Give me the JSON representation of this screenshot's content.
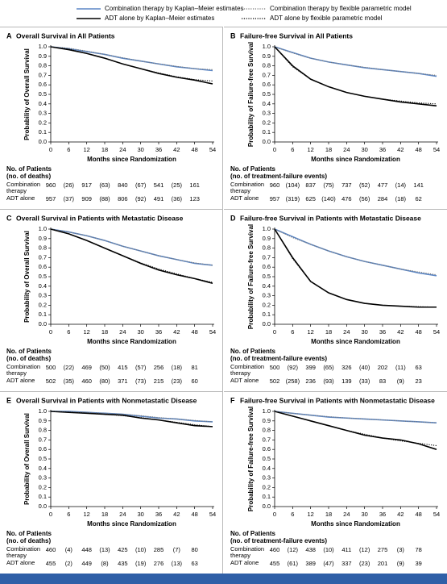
{
  "legend": [
    {
      "name": "Combination therapy by Kaplan–Meier estimates",
      "color": "#5b86c5",
      "style": "solid"
    },
    {
      "name": "ADT alone by Kaplan–Meier estimates",
      "color": "#000000",
      "style": "solid"
    },
    {
      "name": "Combination therapy by flexible parametric model",
      "color": "#777777",
      "style": "dotted"
    },
    {
      "name": "ADT alone by flexible parametric model",
      "color": "#000000",
      "style": "dotted"
    }
  ],
  "chart_data": [
    {
      "type": "line",
      "label": "A",
      "title": "Overall Survival in All Patients",
      "ylabel": "Probability of Overall Survival",
      "xlabel": "Months since Randomization",
      "xlim": [
        0,
        54
      ],
      "xticks": [
        0,
        6,
        12,
        18,
        24,
        30,
        36,
        42,
        48,
        54
      ],
      "ylim": [
        0,
        1
      ],
      "yticks": [
        {
          "value": 0,
          "label": "0.0"
        },
        0.1,
        0.2,
        0.3,
        0.4,
        0.5,
        0.6,
        0.7,
        0.8,
        0.9,
        {
          "value": 1,
          "label": "1.0"
        }
      ],
      "x": [
        0,
        6,
        12,
        18,
        24,
        30,
        36,
        42,
        48,
        54
      ],
      "series": [
        {
          "values": [
            1,
            0.98,
            0.95,
            0.92,
            0.88,
            0.85,
            0.82,
            0.79,
            0.77,
            0.75
          ]
        },
        {
          "values": [
            1,
            0.97,
            0.93,
            0.88,
            0.82,
            0.77,
            0.72,
            0.68,
            0.65,
            0.61
          ]
        },
        {
          "values": [
            1,
            0.985,
            0.955,
            0.92,
            0.885,
            0.85,
            0.82,
            0.795,
            0.77,
            0.76
          ]
        },
        {
          "values": [
            1,
            0.975,
            0.93,
            0.88,
            0.82,
            0.77,
            0.725,
            0.685,
            0.655,
            0.64
          ]
        }
      ],
      "risk_table": {
        "header": "No. of Patients",
        "subheader": "(no. of deaths)",
        "rows": [
          {
            "label": "Combination therapy",
            "cells": [
              "960",
              "(26)",
              "917",
              "(63)",
              "840",
              "(67)",
              "541",
              "(25)",
              "161"
            ]
          },
          {
            "label": "ADT alone",
            "cells": [
              "957",
              "(37)",
              "909",
              "(88)",
              "806",
              "(92)",
              "491",
              "(36)",
              "123"
            ]
          }
        ]
      }
    },
    {
      "type": "line",
      "label": "B",
      "title": "Failure-free Survival in All Patients",
      "ylabel": "Probability of Failure-free Survival",
      "xlabel": "Months since Randomization",
      "xlim": [
        0,
        54
      ],
      "xticks": [
        0,
        6,
        12,
        18,
        24,
        30,
        36,
        42,
        48,
        54
      ],
      "ylim": [
        0,
        1
      ],
      "yticks": [
        {
          "value": 0,
          "label": "0.0"
        },
        0.1,
        0.2,
        0.3,
        0.4,
        0.5,
        0.6,
        0.7,
        0.8,
        0.9,
        {
          "value": 1,
          "label": "1.0"
        }
      ],
      "x": [
        0,
        6,
        12,
        18,
        24,
        30,
        36,
        42,
        48,
        54
      ],
      "series": [
        {
          "values": [
            1,
            0.94,
            0.88,
            0.84,
            0.81,
            0.78,
            0.76,
            0.74,
            0.72,
            0.69
          ]
        },
        {
          "values": [
            1,
            0.8,
            0.66,
            0.58,
            0.52,
            0.48,
            0.45,
            0.42,
            0.4,
            0.38
          ]
        },
        {
          "values": [
            1,
            0.935,
            0.88,
            0.84,
            0.81,
            0.785,
            0.76,
            0.74,
            0.72,
            0.7
          ]
        },
        {
          "values": [
            1,
            0.79,
            0.66,
            0.58,
            0.52,
            0.48,
            0.45,
            0.43,
            0.41,
            0.4
          ]
        }
      ],
      "risk_table": {
        "header": "No. of Patients",
        "subheader": "(no. of treatment-failure events)",
        "rows": [
          {
            "label": "Combination therapy",
            "cells": [
              "960",
              "(104)",
              "837",
              "(75)",
              "737",
              "(52)",
              "477",
              "(14)",
              "141"
            ]
          },
          {
            "label": "ADT alone",
            "cells": [
              "957",
              "(319)",
              "625",
              "(140)",
              "476",
              "(56)",
              "284",
              "(18)",
              "62"
            ]
          }
        ]
      }
    },
    {
      "type": "line",
      "label": "C",
      "title": "Overall Survival in Patients with Metastatic Disease",
      "ylabel": "Probability of Overall Survival",
      "xlabel": "Months since Randomization",
      "xlim": [
        0,
        54
      ],
      "xticks": [
        0,
        6,
        12,
        18,
        24,
        30,
        36,
        42,
        48,
        54
      ],
      "ylim": [
        0,
        1
      ],
      "yticks": [
        {
          "value": 0,
          "label": "0.0"
        },
        0.1,
        0.2,
        0.3,
        0.4,
        0.5,
        0.6,
        0.7,
        0.8,
        0.9,
        {
          "value": 1,
          "label": "1.0"
        }
      ],
      "x": [
        0,
        6,
        12,
        18,
        24,
        30,
        36,
        42,
        48,
        54
      ],
      "series": [
        {
          "values": [
            1,
            0.97,
            0.93,
            0.88,
            0.82,
            0.77,
            0.72,
            0.68,
            0.64,
            0.62
          ]
        },
        {
          "values": [
            1,
            0.95,
            0.88,
            0.8,
            0.72,
            0.64,
            0.57,
            0.52,
            0.48,
            0.43
          ]
        },
        {
          "values": [
            1,
            0.97,
            0.93,
            0.88,
            0.82,
            0.77,
            0.72,
            0.68,
            0.645,
            0.62
          ]
        },
        {
          "values": [
            1,
            0.95,
            0.88,
            0.8,
            0.72,
            0.645,
            0.58,
            0.53,
            0.48,
            0.44
          ]
        }
      ],
      "risk_table": {
        "header": "No. of Patients",
        "subheader": "(no. of deaths)",
        "rows": [
          {
            "label": "Combination therapy",
            "cells": [
              "500",
              "(22)",
              "469",
              "(50)",
              "415",
              "(57)",
              "256",
              "(18)",
              "81"
            ]
          },
          {
            "label": "ADT alone",
            "cells": [
              "502",
              "(35)",
              "460",
              "(80)",
              "371",
              "(73)",
              "215",
              "(23)",
              "60"
            ]
          }
        ]
      }
    },
    {
      "type": "line",
      "label": "D",
      "title": "Failure-free Survival in Patients with Metastatic Disease",
      "ylabel": "Probability of Failure-free Survival",
      "xlabel": "Months since Randomization",
      "xlim": [
        0,
        54
      ],
      "xticks": [
        0,
        6,
        12,
        18,
        24,
        30,
        36,
        42,
        48,
        54
      ],
      "ylim": [
        0,
        1
      ],
      "yticks": [
        {
          "value": 0,
          "label": "0.0"
        },
        0.1,
        0.2,
        0.3,
        0.4,
        0.5,
        0.6,
        0.7,
        0.8,
        0.9,
        {
          "value": 1,
          "label": "1.0"
        }
      ],
      "x": [
        0,
        6,
        12,
        18,
        24,
        30,
        36,
        42,
        48,
        54
      ],
      "series": [
        {
          "values": [
            1,
            0.92,
            0.84,
            0.77,
            0.71,
            0.66,
            0.62,
            0.58,
            0.54,
            0.51
          ]
        },
        {
          "values": [
            1,
            0.7,
            0.45,
            0.33,
            0.26,
            0.22,
            0.2,
            0.19,
            0.18,
            0.18
          ]
        },
        {
          "values": [
            1,
            0.91,
            0.84,
            0.77,
            0.71,
            0.66,
            0.62,
            0.58,
            0.55,
            0.52
          ]
        },
        {
          "values": [
            1,
            0.69,
            0.45,
            0.33,
            0.26,
            0.22,
            0.2,
            0.19,
            0.185,
            0.18
          ]
        }
      ],
      "risk_table": {
        "header": "No. of Patients",
        "subheader": "(no. of treatment-failure events)",
        "rows": [
          {
            "label": "Combination therapy",
            "cells": [
              "500",
              "(92)",
              "399",
              "(65)",
              "326",
              "(40)",
              "202",
              "(11)",
              "63"
            ]
          },
          {
            "label": "ADT alone",
            "cells": [
              "502",
              "(258)",
              "236",
              "(93)",
              "139",
              "(33)",
              "83",
              "(9)",
              "23"
            ]
          }
        ]
      }
    },
    {
      "type": "line",
      "label": "E",
      "title": "Overall Survival in Patients with Nonmetastatic Disease",
      "ylabel": "Probability of Overall Survival",
      "xlabel": "Months since Randomization",
      "xlim": [
        0,
        54
      ],
      "xticks": [
        0,
        6,
        12,
        18,
        24,
        30,
        36,
        42,
        48,
        54
      ],
      "ylim": [
        0,
        1
      ],
      "yticks": [
        {
          "value": 0,
          "label": "0.0"
        },
        0.1,
        0.2,
        0.3,
        0.4,
        0.5,
        0.6,
        0.7,
        0.8,
        0.9,
        {
          "value": 1,
          "label": "1.0"
        }
      ],
      "x": [
        0,
        6,
        12,
        18,
        24,
        30,
        36,
        42,
        48,
        54
      ],
      "series": [
        {
          "values": [
            1,
            1,
            0.99,
            0.98,
            0.97,
            0.95,
            0.93,
            0.92,
            0.9,
            0.89
          ]
        },
        {
          "values": [
            1,
            0.99,
            0.98,
            0.97,
            0.96,
            0.93,
            0.91,
            0.88,
            0.85,
            0.84
          ]
        },
        {
          "values": [
            1,
            0.995,
            0.99,
            0.98,
            0.97,
            0.955,
            0.935,
            0.92,
            0.905,
            0.89
          ]
        },
        {
          "values": [
            1,
            0.99,
            0.98,
            0.97,
            0.955,
            0.935,
            0.91,
            0.885,
            0.86,
            0.84
          ]
        }
      ],
      "risk_table": {
        "header": "No. of Patients",
        "subheader": "(no. of deaths)",
        "rows": [
          {
            "label": "Combination therapy",
            "cells": [
              "460",
              "(4)",
              "448",
              "(13)",
              "425",
              "(10)",
              "285",
              "(7)",
              "80"
            ]
          },
          {
            "label": "ADT alone",
            "cells": [
              "455",
              "(2)",
              "449",
              "(8)",
              "435",
              "(19)",
              "276",
              "(13)",
              "63"
            ]
          }
        ]
      }
    },
    {
      "type": "line",
      "label": "F",
      "title": "Failure-free Survival in Patients with Nonmetastatic Disease",
      "ylabel": "Probability of Failure-free Survival",
      "xlabel": "Months since Randomization",
      "xlim": [
        0,
        54
      ],
      "xticks": [
        0,
        6,
        12,
        18,
        24,
        30,
        36,
        42,
        48,
        54
      ],
      "ylim": [
        0,
        1
      ],
      "yticks": [
        {
          "value": 0,
          "label": "0.0"
        },
        0.1,
        0.2,
        0.3,
        0.4,
        0.5,
        0.6,
        0.7,
        0.8,
        0.9,
        {
          "value": 1,
          "label": "1.0"
        }
      ],
      "x": [
        0,
        6,
        12,
        18,
        24,
        30,
        36,
        42,
        48,
        54
      ],
      "series": [
        {
          "values": [
            1,
            0.98,
            0.96,
            0.94,
            0.93,
            0.92,
            0.91,
            0.9,
            0.89,
            0.88
          ]
        },
        {
          "values": [
            1,
            0.95,
            0.9,
            0.85,
            0.8,
            0.75,
            0.72,
            0.7,
            0.66,
            0.6
          ]
        },
        {
          "values": [
            1,
            0.98,
            0.96,
            0.945,
            0.93,
            0.92,
            0.91,
            0.9,
            0.89,
            0.88
          ]
        },
        {
          "values": [
            1,
            0.95,
            0.9,
            0.85,
            0.8,
            0.76,
            0.72,
            0.69,
            0.665,
            0.64
          ]
        }
      ],
      "risk_table": {
        "header": "No. of Patients",
        "subheader": "(no. of treatment-failure events)",
        "rows": [
          {
            "label": "Combination therapy",
            "cells": [
              "460",
              "(12)",
              "438",
              "(10)",
              "411",
              "(12)",
              "275",
              "(3)",
              "78"
            ]
          },
          {
            "label": "ADT alone",
            "cells": [
              "455",
              "(61)",
              "389",
              "(47)",
              "337",
              "(23)",
              "201",
              "(9)",
              "39"
            ]
          }
        ]
      }
    }
  ]
}
